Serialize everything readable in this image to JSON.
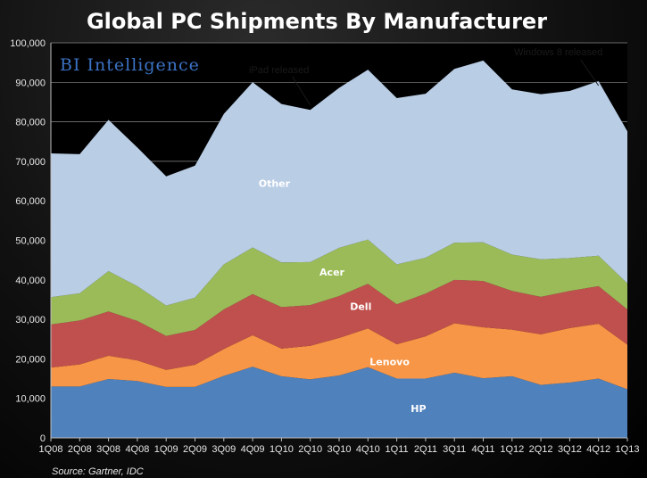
{
  "chart_data": {
    "type": "area",
    "stacked": true,
    "title": "Global PC Shipments By Manufacturer",
    "brand": "BI Intelligence",
    "source": "Source: Gartner, IDC",
    "categories": [
      "1Q08",
      "2Q08",
      "3Q08",
      "4Q08",
      "1Q09",
      "2Q09",
      "3Q09",
      "4Q09",
      "1Q10",
      "2Q10",
      "3Q10",
      "4Q10",
      "1Q11",
      "2Q11",
      "3Q11",
      "4Q11",
      "1Q12",
      "2Q12",
      "3Q12",
      "4Q12",
      "1Q13"
    ],
    "ylim": [
      0,
      100000
    ],
    "yticks": [
      0,
      10000,
      20000,
      30000,
      40000,
      50000,
      60000,
      70000,
      80000,
      90000,
      100000
    ],
    "ytick_labels": [
      "0",
      "10,000",
      "20,000",
      "30,000",
      "40,000",
      "50,000",
      "60,000",
      "70,000",
      "80,000",
      "90,000",
      "100,000"
    ],
    "grid": true,
    "series": [
      {
        "name": "HP",
        "color": "#4f81bd",
        "values": [
          13000,
          13000,
          14900,
          14400,
          12900,
          12900,
          15700,
          18000,
          15600,
          14800,
          15800,
          17900,
          15000,
          15000,
          16500,
          15100,
          15600,
          13400,
          14000,
          15000,
          12300
        ]
      },
      {
        "name": "Lenovo",
        "color": "#f79646",
        "values": [
          4800,
          5600,
          5900,
          5200,
          4300,
          5600,
          6800,
          8000,
          7000,
          8500,
          9500,
          9800,
          8700,
          10700,
          12500,
          12900,
          11800,
          12800,
          13800,
          13900,
          11300
        ]
      },
      {
        "name": "Dell",
        "color": "#c0504d",
        "values": [
          10900,
          11100,
          11200,
          10000,
          8600,
          8800,
          10000,
          10400,
          10500,
          10300,
          10600,
          11300,
          10100,
          10800,
          11000,
          11700,
          9800,
          9500,
          9400,
          9500,
          8900
        ]
      },
      {
        "name": "Acer",
        "color": "#9bbb59",
        "values": [
          6900,
          6900,
          10200,
          8800,
          7700,
          8200,
          11400,
          11800,
          11300,
          10900,
          12200,
          11200,
          10100,
          9100,
          9400,
          9800,
          9200,
          9500,
          8300,
          7700,
          6600
        ]
      },
      {
        "name": "Other",
        "color": "#b9cde5",
        "values": [
          36400,
          35200,
          38300,
          35100,
          32700,
          33400,
          38100,
          41800,
          40100,
          38500,
          40500,
          43000,
          42100,
          41500,
          44000,
          46000,
          41800,
          41800,
          42300,
          44200,
          38500
        ]
      }
    ],
    "annotations": [
      {
        "text": "iPad released",
        "category": "2Q10"
      },
      {
        "text": "Windows 8 released",
        "category": "4Q12"
      }
    ]
  }
}
